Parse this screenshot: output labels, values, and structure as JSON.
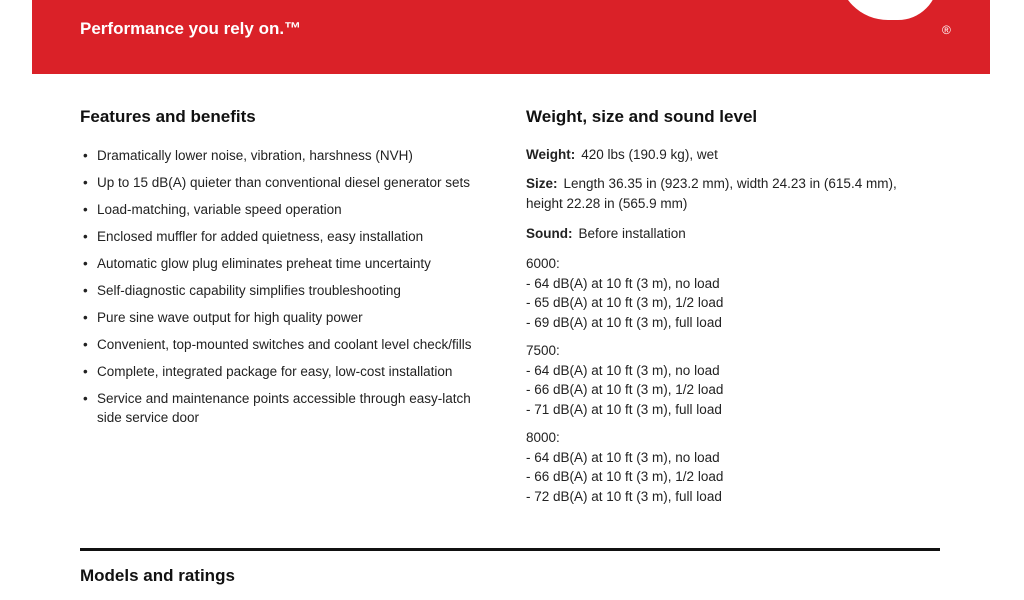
{
  "header": {
    "tagline": "Performance you rely on.™",
    "registered": "®"
  },
  "features": {
    "title": "Features and benefits",
    "items": [
      "Dramatically lower noise, vibration, harshness (NVH)",
      "Up to 15 dB(A) quieter than conventional diesel generator sets",
      "Load-matching, variable speed operation",
      "Enclosed muffler for added quietness, easy installation",
      "Automatic glow plug eliminates preheat time uncertainty",
      "Self-diagnostic capability simplifies troubleshooting",
      "Pure sine wave output for high quality power",
      "Convenient, top-mounted switches and coolant level check/fills",
      "Complete, integrated package for easy, low-cost installation",
      "Service and maintenance points accessible through easy-latch side service door"
    ]
  },
  "specs": {
    "title": "Weight, size and sound level",
    "weight": {
      "label": "Weight:",
      "text": "420 lbs (190.9 kg), wet"
    },
    "size": {
      "label": "Size:",
      "text": "Length 36.35 in (923.2 mm), width 24.23 in (615.4 mm), height 22.28 in (565.9 mm)"
    },
    "sound": {
      "label": "Sound:",
      "text": "Before installation"
    },
    "groups": [
      {
        "model": "6000:",
        "lines": [
          "- 64 dB(A) at 10 ft (3 m), no load",
          "- 65 dB(A) at 10 ft (3 m), 1/2 load",
          "- 69 dB(A) at 10 ft (3 m), full load"
        ]
      },
      {
        "model": "7500:",
        "lines": [
          "- 64 dB(A) at 10 ft (3 m), no load",
          "- 66 dB(A) at 10 ft (3 m), 1/2 load",
          "- 71 dB(A) at 10 ft (3 m), full load"
        ]
      },
      {
        "model": "8000:",
        "lines": [
          "- 64 dB(A) at 10 ft (3 m), no load",
          "- 66 dB(A) at 10 ft (3 m), 1/2 load",
          "- 72 dB(A) at 10 ft (3 m), full load"
        ]
      }
    ]
  },
  "models": {
    "title": "Models and ratings"
  }
}
